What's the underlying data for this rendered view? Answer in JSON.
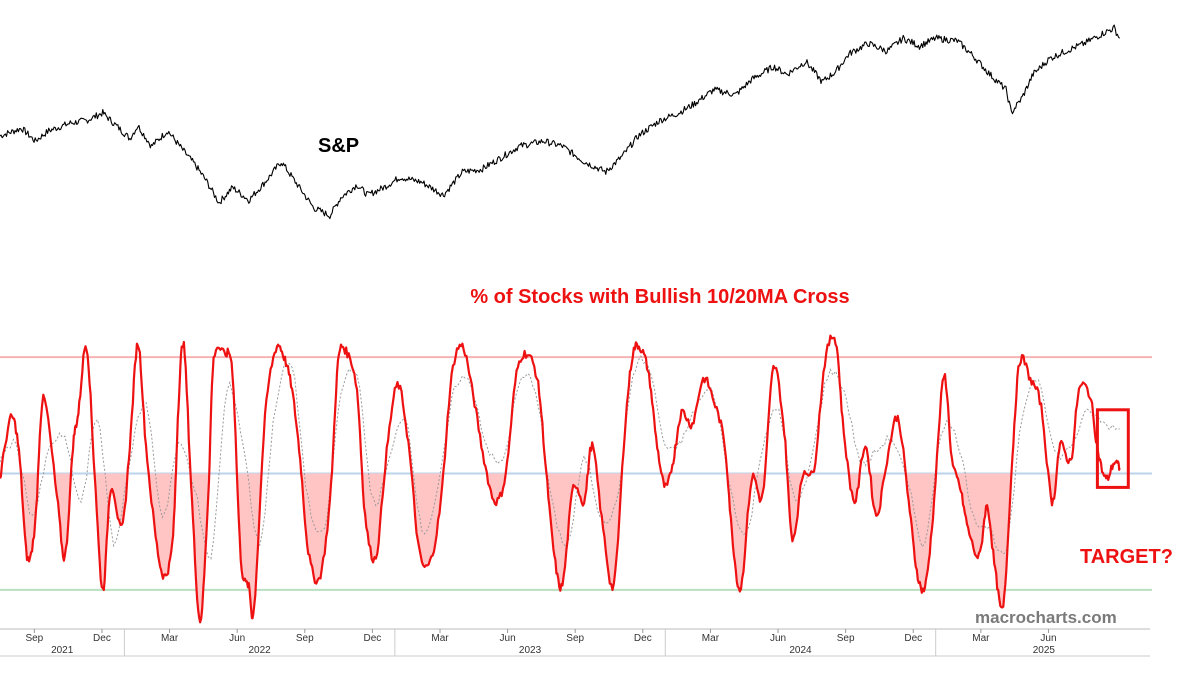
{
  "watermark": "macrocharts.com",
  "colors": {
    "price": "#000000",
    "indicator": "#ee1111",
    "fill": "#ffc4c4",
    "signal": "#9a9a9a",
    "upper": "#f6b3b3",
    "middle": "#bcd3ec",
    "lower": "#b8e0c0"
  },
  "chart_data": [
    {
      "type": "line",
      "label": "S&P",
      "x_range": [
        2021.54,
        2025.7
      ],
      "y_range": [
        0,
        100
      ],
      "points": [
        [
          2021.54,
          58
        ],
        [
          2021.62,
          61
        ],
        [
          2021.67,
          56
        ],
        [
          2021.72,
          60
        ],
        [
          2021.8,
          63
        ],
        [
          2021.86,
          64
        ],
        [
          2021.92,
          67
        ],
        [
          2021.98,
          61
        ],
        [
          2022.02,
          57
        ],
        [
          2022.05,
          62
        ],
        [
          2022.1,
          54
        ],
        [
          2022.16,
          60
        ],
        [
          2022.22,
          52
        ],
        [
          2022.26,
          47
        ],
        [
          2022.3,
          41
        ],
        [
          2022.35,
          32
        ],
        [
          2022.4,
          38
        ],
        [
          2022.46,
          33
        ],
        [
          2022.52,
          40
        ],
        [
          2022.58,
          48
        ],
        [
          2022.62,
          42
        ],
        [
          2022.7,
          30
        ],
        [
          2022.76,
          27
        ],
        [
          2022.8,
          34
        ],
        [
          2022.86,
          39
        ],
        [
          2022.9,
          35
        ],
        [
          2022.96,
          38
        ],
        [
          2023.02,
          42
        ],
        [
          2023.1,
          40
        ],
        [
          2023.18,
          35
        ],
        [
          2023.25,
          44
        ],
        [
          2023.32,
          45
        ],
        [
          2023.4,
          50
        ],
        [
          2023.46,
          54
        ],
        [
          2023.55,
          56
        ],
        [
          2023.62,
          54
        ],
        [
          2023.7,
          48
        ],
        [
          2023.78,
          44
        ],
        [
          2023.84,
          50
        ],
        [
          2023.9,
          58
        ],
        [
          2023.98,
          64
        ],
        [
          2024.05,
          67
        ],
        [
          2024.1,
          70
        ],
        [
          2024.18,
          76
        ],
        [
          2024.26,
          74
        ],
        [
          2024.32,
          80
        ],
        [
          2024.4,
          85
        ],
        [
          2024.45,
          82
        ],
        [
          2024.52,
          87
        ],
        [
          2024.58,
          79
        ],
        [
          2024.63,
          83
        ],
        [
          2024.68,
          90
        ],
        [
          2024.75,
          94
        ],
        [
          2024.82,
          91
        ],
        [
          2024.88,
          96
        ],
        [
          2024.94,
          93
        ],
        [
          2025.0,
          96
        ],
        [
          2025.08,
          95
        ],
        [
          2025.14,
          89
        ],
        [
          2025.2,
          82
        ],
        [
          2025.26,
          76
        ],
        [
          2025.28,
          67
        ],
        [
          2025.32,
          73
        ],
        [
          2025.36,
          82
        ],
        [
          2025.42,
          88
        ],
        [
          2025.48,
          91
        ],
        [
          2025.55,
          94
        ],
        [
          2025.62,
          98
        ],
        [
          2025.66,
          100
        ],
        [
          2025.68,
          96
        ]
      ]
    },
    {
      "type": "area",
      "title": "% of Stocks with Bullish 10/20MA Cross",
      "x_range": [
        2021.54,
        2025.7
      ],
      "y_range": [
        0,
        100
      ],
      "reference_lines": [
        92,
        50,
        8
      ],
      "fill_below": 50,
      "series": [
        {
          "role": "indicator",
          "points": [
            [
              2021.54,
              48
            ],
            [
              2021.58,
              70
            ],
            [
              2021.61,
              58
            ],
            [
              2021.64,
              20
            ],
            [
              2021.67,
              32
            ],
            [
              2021.7,
              77
            ],
            [
              2021.75,
              42
            ],
            [
              2021.78,
              20
            ],
            [
              2021.81,
              60
            ],
            [
              2021.83,
              72
            ],
            [
              2021.86,
              96
            ],
            [
              2021.89,
              50
            ],
            [
              2021.92,
              8
            ],
            [
              2021.95,
              45
            ],
            [
              2021.99,
              30
            ],
            [
              2022.02,
              60
            ],
            [
              2022.05,
              97
            ],
            [
              2022.08,
              60
            ],
            [
              2022.12,
              24
            ],
            [
              2022.15,
              13
            ],
            [
              2022.18,
              28
            ],
            [
              2022.2,
              75
            ],
            [
              2022.22,
              96
            ],
            [
              2022.25,
              40
            ],
            [
              2022.28,
              -3
            ],
            [
              2022.31,
              42
            ],
            [
              2022.33,
              91
            ],
            [
              2022.37,
              93
            ],
            [
              2022.4,
              86
            ],
            [
              2022.43,
              20
            ],
            [
              2022.46,
              9
            ],
            [
              2022.48,
              2
            ],
            [
              2022.52,
              70
            ],
            [
              2022.56,
              95
            ],
            [
              2022.59,
              92
            ],
            [
              2022.62,
              80
            ],
            [
              2022.65,
              55
            ],
            [
              2022.68,
              22
            ],
            [
              2022.72,
              12
            ],
            [
              2022.76,
              40
            ],
            [
              2022.79,
              90
            ],
            [
              2022.82,
              94
            ],
            [
              2022.86,
              80
            ],
            [
              2022.89,
              35
            ],
            [
              2022.93,
              20
            ],
            [
              2022.97,
              58
            ],
            [
              2023.01,
              82
            ],
            [
              2023.05,
              61
            ],
            [
              2023.09,
              22
            ],
            [
              2023.13,
              18
            ],
            [
              2023.17,
              40
            ],
            [
              2023.21,
              85
            ],
            [
              2023.25,
              96
            ],
            [
              2023.29,
              78
            ],
            [
              2023.33,
              55
            ],
            [
              2023.37,
              40
            ],
            [
              2023.41,
              50
            ],
            [
              2023.45,
              86
            ],
            [
              2023.49,
              93
            ],
            [
              2023.53,
              82
            ],
            [
              2023.56,
              50
            ],
            [
              2023.59,
              20
            ],
            [
              2023.62,
              10
            ],
            [
              2023.66,
              45
            ],
            [
              2023.7,
              40
            ],
            [
              2023.73,
              60
            ],
            [
              2023.77,
              30
            ],
            [
              2023.81,
              10
            ],
            [
              2023.85,
              65
            ],
            [
              2023.88,
              93
            ],
            [
              2023.91,
              95
            ],
            [
              2023.94,
              85
            ],
            [
              2023.97,
              60
            ],
            [
              2024.0,
              45
            ],
            [
              2024.03,
              55
            ],
            [
              2024.06,
              72
            ],
            [
              2024.1,
              68
            ],
            [
              2024.14,
              84
            ],
            [
              2024.18,
              76
            ],
            [
              2024.22,
              60
            ],
            [
              2024.25,
              25
            ],
            [
              2024.28,
              9
            ],
            [
              2024.32,
              48
            ],
            [
              2024.36,
              42
            ],
            [
              2024.4,
              88
            ],
            [
              2024.44,
              65
            ],
            [
              2024.47,
              27
            ],
            [
              2024.51,
              50
            ],
            [
              2024.55,
              52
            ],
            [
              2024.59,
              90
            ],
            [
              2024.63,
              98
            ],
            [
              2024.66,
              65
            ],
            [
              2024.7,
              40
            ],
            [
              2024.74,
              60
            ],
            [
              2024.78,
              35
            ],
            [
              2024.82,
              55
            ],
            [
              2024.86,
              70
            ],
            [
              2024.9,
              40
            ],
            [
              2024.93,
              15
            ],
            [
              2024.96,
              9
            ],
            [
              2024.99,
              35
            ],
            [
              2025.03,
              85
            ],
            [
              2025.06,
              55
            ],
            [
              2025.09,
              45
            ],
            [
              2025.12,
              30
            ],
            [
              2025.16,
              20
            ],
            [
              2025.19,
              38
            ],
            [
              2025.22,
              15
            ],
            [
              2025.25,
              2
            ],
            [
              2025.28,
              50
            ],
            [
              2025.31,
              90
            ],
            [
              2025.35,
              84
            ],
            [
              2025.39,
              74
            ],
            [
              2025.43,
              40
            ],
            [
              2025.46,
              60
            ],
            [
              2025.5,
              55
            ],
            [
              2025.53,
              80
            ],
            [
              2025.57,
              78
            ],
            [
              2025.6,
              58
            ],
            [
              2025.63,
              48
            ],
            [
              2025.66,
              54
            ],
            [
              2025.68,
              52
            ]
          ]
        },
        {
          "role": "signal",
          "points": [
            [
              2021.54,
              55
            ],
            [
              2021.6,
              60
            ],
            [
              2021.66,
              35
            ],
            [
              2021.72,
              58
            ],
            [
              2021.78,
              62
            ],
            [
              2021.84,
              40
            ],
            [
              2021.9,
              70
            ],
            [
              2021.96,
              25
            ],
            [
              2022.02,
              55
            ],
            [
              2022.08,
              75
            ],
            [
              2022.14,
              35
            ],
            [
              2022.2,
              60
            ],
            [
              2022.26,
              45
            ],
            [
              2022.32,
              20
            ],
            [
              2022.38,
              80
            ],
            [
              2022.44,
              60
            ],
            [
              2022.5,
              25
            ],
            [
              2022.56,
              75
            ],
            [
              2022.62,
              88
            ],
            [
              2022.68,
              40
            ],
            [
              2022.74,
              30
            ],
            [
              2022.8,
              78
            ],
            [
              2022.86,
              85
            ],
            [
              2022.92,
              40
            ],
            [
              2022.98,
              55
            ],
            [
              2023.04,
              70
            ],
            [
              2023.1,
              30
            ],
            [
              2023.16,
              45
            ],
            [
              2023.22,
              80
            ],
            [
              2023.28,
              82
            ],
            [
              2023.34,
              60
            ],
            [
              2023.4,
              55
            ],
            [
              2023.46,
              82
            ],
            [
              2023.52,
              80
            ],
            [
              2023.58,
              40
            ],
            [
              2023.64,
              25
            ],
            [
              2023.7,
              55
            ],
            [
              2023.76,
              35
            ],
            [
              2023.82,
              40
            ],
            [
              2023.88,
              85
            ],
            [
              2023.94,
              88
            ],
            [
              2024.0,
              60
            ],
            [
              2024.06,
              62
            ],
            [
              2024.12,
              75
            ],
            [
              2024.18,
              78
            ],
            [
              2024.24,
              45
            ],
            [
              2024.3,
              28
            ],
            [
              2024.36,
              60
            ],
            [
              2024.42,
              72
            ],
            [
              2024.48,
              40
            ],
            [
              2024.54,
              55
            ],
            [
              2024.6,
              85
            ],
            [
              2024.66,
              80
            ],
            [
              2024.72,
              55
            ],
            [
              2024.78,
              58
            ],
            [
              2024.84,
              62
            ],
            [
              2024.9,
              45
            ],
            [
              2024.96,
              25
            ],
            [
              2025.02,
              65
            ],
            [
              2025.08,
              62
            ],
            [
              2025.14,
              35
            ],
            [
              2025.2,
              30
            ],
            [
              2025.26,
              22
            ],
            [
              2025.32,
              70
            ],
            [
              2025.38,
              84
            ],
            [
              2025.44,
              58
            ],
            [
              2025.5,
              60
            ],
            [
              2025.56,
              72
            ],
            [
              2025.62,
              68
            ],
            [
              2025.68,
              66
            ]
          ]
        }
      ],
      "highlight_box": [
        2025.62,
        2025.69
      ],
      "annotation": "TARGET?"
    }
  ],
  "x_axis": {
    "months": [
      {
        "label": "Sep",
        "t": 2021.667
      },
      {
        "label": "Dec",
        "t": 2021.917
      },
      {
        "label": "Mar",
        "t": 2022.167
      },
      {
        "label": "Jun",
        "t": 2022.417
      },
      {
        "label": "Sep",
        "t": 2022.667
      },
      {
        "label": "Dec",
        "t": 2022.917
      },
      {
        "label": "Mar",
        "t": 2023.167
      },
      {
        "label": "Jun",
        "t": 2023.417
      },
      {
        "label": "Sep",
        "t": 2023.667
      },
      {
        "label": "Dec",
        "t": 2023.917
      },
      {
        "label": "Mar",
        "t": 2024.167
      },
      {
        "label": "Jun",
        "t": 2024.417
      },
      {
        "label": "Sep",
        "t": 2024.667
      },
      {
        "label": "Dec",
        "t": 2024.917
      },
      {
        "label": "Mar",
        "t": 2025.167
      },
      {
        "label": "Jun",
        "t": 2025.417
      }
    ],
    "years": [
      {
        "label": "2021",
        "t": 2021.77
      },
      {
        "label": "2022",
        "t": 2022.5
      },
      {
        "label": "2023",
        "t": 2023.5
      },
      {
        "label": "2024",
        "t": 2024.5
      },
      {
        "label": "2025",
        "t": 2025.4
      }
    ],
    "year_dividers": [
      2022.0,
      2023.0,
      2024.0,
      2025.0
    ]
  }
}
